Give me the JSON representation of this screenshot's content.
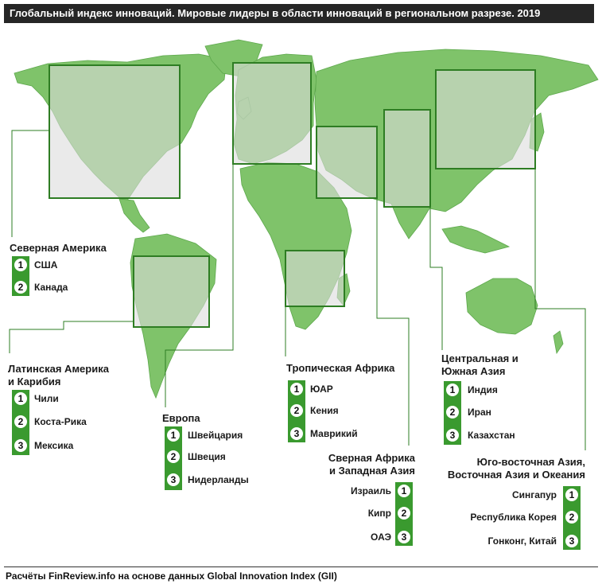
{
  "title": "Глобальный индекс инноваций. Мировые лидеры в области инноваций в региональном разрезе. 2019",
  "footer": "Расчёты FinReview.info  на основе данных Global Innovation Index (GII)",
  "colors": {
    "land": "#7fc36a",
    "land_dark": "#5da84c",
    "frame": "#2e7d23",
    "accent": "#3a9a2f",
    "title_bg": "#262626"
  },
  "regions": {
    "north_america": {
      "title": "Северная Америка",
      "countries": [
        "США",
        "Канада"
      ]
    },
    "latin_america": {
      "title_line1": "Латинская Америка",
      "title_line2": "и Карибия",
      "countries": [
        "Чили",
        "Коста-Рика",
        "Мексика"
      ]
    },
    "europe": {
      "title": "Европа",
      "countries": [
        "Швейцария",
        "Швеция",
        "Нидерланды"
      ]
    },
    "tropical_africa": {
      "title": "Тропическая Африка",
      "countries": [
        "ЮАР",
        "Кения",
        "Маврикий"
      ]
    },
    "north_africa": {
      "title_line1": "Сверная Африка",
      "title_line2": "и Западная Азия",
      "countries": [
        "Израиль",
        "Кипр",
        "ОАЭ"
      ]
    },
    "central_asia": {
      "title_line1": "Центральная и",
      "title_line2": "Южная Азия",
      "countries": [
        "Индия",
        "Иран",
        "Казахстан"
      ]
    },
    "east_asia": {
      "title_line1": "Юго-восточная  Азия,",
      "title_line2": "Восточная Азия и Океания",
      "countries": [
        "Сингапур",
        "Республика Корея",
        "Гонконг, Китай"
      ]
    }
  },
  "ranks": [
    "1",
    "2",
    "3"
  ]
}
